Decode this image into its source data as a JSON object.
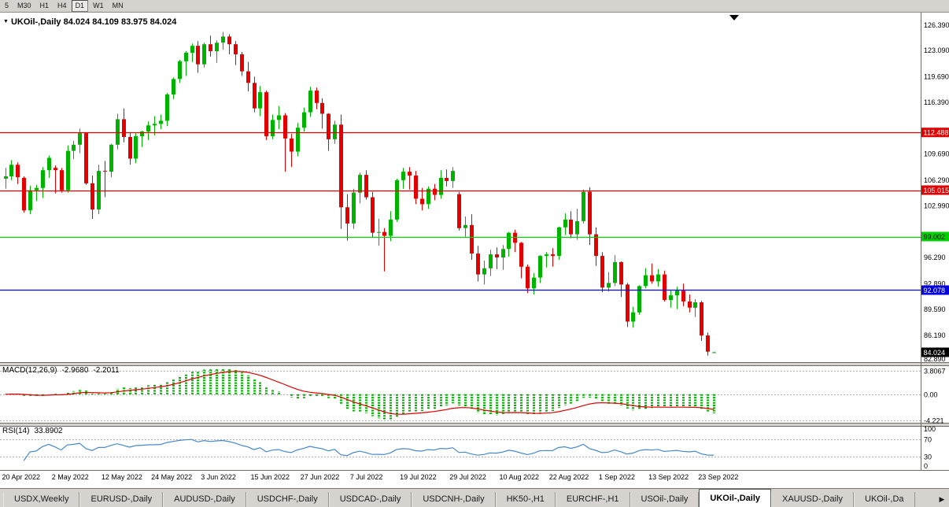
{
  "toolbar": {
    "timeframes": [
      "5",
      "M30",
      "H1",
      "H4",
      "D1",
      "W1",
      "MN"
    ],
    "active": "D1"
  },
  "chart": {
    "title": {
      "expander_icon": "▼",
      "symbol": "UKOil-,Daily",
      "ohlc": "84.024 84.109 83.975 84.024"
    },
    "price_axis": {
      "min": 82.75,
      "max": 128.0,
      "ticks": [
        {
          "label": "126.390",
          "value": 126.39
        },
        {
          "label": "123.090",
          "value": 123.09
        },
        {
          "label": "119.690",
          "value": 119.69
        },
        {
          "label": "116.390",
          "value": 116.39
        },
        {
          "label": "109.690",
          "value": 109.69
        },
        {
          "label": "106.290",
          "value": 106.29
        },
        {
          "label": "102.990",
          "value": 102.99
        },
        {
          "label": "96.290",
          "value": 96.29
        },
        {
          "label": "92.890",
          "value": 92.89
        },
        {
          "label": "89.590",
          "value": 89.59
        },
        {
          "label": "86.190",
          "value": 86.19
        },
        {
          "label": "82.890",
          "value": 82.89
        }
      ]
    },
    "hlines": [
      {
        "label": "112.488",
        "value": 112.488,
        "color": "#e00000",
        "text_color": "#ffffff"
      },
      {
        "label": "105.015",
        "value": 105.015,
        "color": "#e00000",
        "text_color": "#ffffff"
      },
      {
        "label": "99.002",
        "value": 99.002,
        "color": "#00d200",
        "text_color": "#000000"
      },
      {
        "label": "92.078",
        "value": 92.078,
        "color": "#0000e0",
        "text_color": "#ffffff"
      }
    ],
    "bid_badge": {
      "label": "84.024",
      "value": 84.024,
      "bg": "#000000",
      "text_color": "#ffffff"
    },
    "up_color": "#00b200",
    "down_color": "#e30000",
    "shift_marker_icon": "▼"
  },
  "chart_data": {
    "type": "candlestick",
    "symbol": "UKOil-",
    "period": "Daily",
    "ohlc": [
      [
        106.5,
        107.9,
        105.2,
        106.8
      ],
      [
        106.8,
        108.9,
        106.3,
        108.3
      ],
      [
        108.3,
        108.6,
        105.8,
        106.7
      ],
      [
        106.6,
        106.8,
        102.1,
        102.4
      ],
      [
        102.4,
        105.6,
        101.9,
        105.0
      ],
      [
        105.0,
        105.7,
        103.6,
        105.3
      ],
      [
        105.3,
        108.0,
        104.0,
        107.6
      ],
      [
        107.6,
        109.5,
        106.6,
        109.2
      ],
      [
        107.9,
        108.2,
        104.6,
        107.6
      ],
      [
        107.6,
        107.9,
        104.7,
        105.0
      ],
      [
        105.0,
        110.8,
        104.7,
        110.1
      ],
      [
        110.1,
        111.4,
        109.0,
        110.9
      ],
      [
        110.9,
        113.0,
        109.8,
        112.4
      ],
      [
        112.4,
        112.5,
        105.7,
        105.9
      ],
      [
        105.9,
        106.9,
        101.3,
        102.5
      ],
      [
        102.5,
        108.3,
        101.9,
        107.5
      ],
      [
        107.5,
        108.8,
        104.1,
        107.4
      ],
      [
        107.4,
        111.0,
        106.7,
        110.9
      ],
      [
        110.9,
        114.9,
        110.3,
        114.2
      ],
      [
        114.2,
        115.6,
        111.2,
        111.9
      ],
      [
        111.9,
        112.4,
        108.3,
        109.1
      ],
      [
        109.1,
        112.4,
        108.5,
        112.0
      ],
      [
        112.0,
        112.7,
        110.6,
        112.6
      ],
      [
        112.6,
        113.9,
        111.5,
        113.4
      ],
      [
        113.4,
        114.6,
        112.1,
        113.6
      ],
      [
        113.6,
        114.8,
        112.9,
        114.0
      ],
      [
        114.0,
        117.6,
        113.3,
        117.4
      ],
      [
        117.4,
        119.6,
        116.8,
        119.4
      ],
      [
        119.4,
        121.9,
        118.9,
        121.7
      ],
      [
        121.7,
        123.0,
        119.8,
        122.8
      ],
      [
        122.8,
        124.0,
        121.6,
        123.7
      ],
      [
        123.7,
        124.3,
        120.2,
        121.3
      ],
      [
        121.3,
        124.1,
        120.9,
        123.9
      ],
      [
        123.9,
        125.0,
        122.3,
        123.0
      ],
      [
        123.0,
        124.4,
        121.5,
        124.1
      ],
      [
        124.1,
        125.5,
        123.2,
        124.9
      ],
      [
        124.9,
        125.2,
        122.6,
        123.9
      ],
      [
        123.9,
        124.3,
        121.2,
        122.6
      ],
      [
        122.6,
        122.9,
        119.8,
        120.4
      ],
      [
        120.4,
        121.6,
        117.8,
        118.9
      ],
      [
        118.9,
        119.7,
        115.1,
        115.6
      ],
      [
        115.6,
        118.5,
        114.6,
        117.7
      ],
      [
        117.7,
        117.9,
        111.5,
        112.0
      ],
      [
        112.0,
        114.8,
        111.6,
        114.1
      ],
      [
        114.1,
        115.9,
        112.9,
        114.7
      ],
      [
        114.7,
        115.0,
        107.4,
        111.7
      ],
      [
        111.7,
        112.3,
        108.0,
        110.0
      ],
      [
        110.0,
        113.7,
        109.4,
        113.1
      ],
      [
        113.1,
        115.7,
        112.6,
        115.1
      ],
      [
        115.1,
        118.4,
        114.5,
        117.9
      ],
      [
        117.9,
        118.3,
        115.5,
        116.3
      ],
      [
        116.3,
        116.9,
        113.0,
        114.9
      ],
      [
        114.9,
        115.0,
        110.1,
        111.6
      ],
      [
        111.6,
        114.0,
        111.0,
        113.5
      ],
      [
        113.5,
        114.8,
        100.0,
        102.8
      ],
      [
        102.8,
        104.5,
        98.5,
        100.7
      ],
      [
        100.7,
        105.2,
        100.0,
        104.7
      ],
      [
        104.7,
        107.3,
        103.3,
        107.0
      ],
      [
        107.0,
        107.6,
        103.8,
        104.1
      ],
      [
        104.1,
        104.8,
        98.9,
        99.5
      ],
      [
        99.5,
        101.3,
        97.8,
        99.6
      ],
      [
        99.6,
        100.1,
        94.5,
        99.1
      ],
      [
        99.1,
        102.3,
        98.4,
        101.2
      ],
      [
        101.2,
        106.5,
        100.9,
        106.3
      ],
      [
        106.3,
        107.9,
        105.2,
        107.4
      ],
      [
        107.4,
        108.0,
        105.1,
        106.9
      ],
      [
        106.9,
        107.5,
        103.2,
        103.9
      ],
      [
        103.9,
        105.3,
        102.4,
        103.2
      ],
      [
        103.2,
        105.5,
        102.6,
        105.2
      ],
      [
        105.2,
        105.8,
        103.7,
        104.4
      ],
      [
        104.4,
        107.6,
        103.9,
        106.6
      ],
      [
        106.6,
        107.7,
        105.5,
        106.2
      ],
      [
        106.2,
        108.0,
        105.3,
        107.5
      ],
      [
        104.5,
        104.8,
        99.8,
        100.1
      ],
      [
        100.1,
        101.6,
        99.0,
        100.5
      ],
      [
        100.5,
        101.9,
        96.0,
        96.8
      ],
      [
        96.8,
        97.8,
        93.2,
        94.1
      ],
      [
        94.1,
        95.9,
        92.8,
        94.9
      ],
      [
        94.9,
        97.3,
        93.9,
        96.7
      ],
      [
        96.7,
        97.6,
        94.8,
        96.3
      ],
      [
        96.3,
        97.9,
        94.7,
        97.4
      ],
      [
        97.4,
        99.6,
        96.4,
        99.5
      ],
      [
        99.5,
        99.9,
        97.0,
        98.2
      ],
      [
        98.2,
        98.3,
        93.6,
        95.1
      ],
      [
        95.1,
        95.4,
        91.7,
        92.3
      ],
      [
        92.3,
        94.3,
        91.5,
        93.7
      ],
      [
        93.7,
        96.6,
        93.0,
        96.5
      ],
      [
        96.5,
        97.0,
        95.0,
        96.7
      ],
      [
        96.7,
        97.5,
        95.1,
        96.5
      ],
      [
        96.5,
        100.3,
        96.0,
        100.2
      ],
      [
        100.2,
        102.0,
        99.2,
        101.2
      ],
      [
        101.2,
        102.3,
        98.8,
        99.3
      ],
      [
        99.3,
        102.6,
        98.6,
        101.0
      ],
      [
        101.0,
        105.1,
        100.7,
        104.8
      ],
      [
        104.8,
        105.4,
        97.9,
        99.3
      ],
      [
        99.3,
        100.2,
        95.2,
        96.5
      ],
      [
        96.5,
        97.0,
        91.8,
        92.4
      ],
      [
        92.4,
        94.4,
        91.9,
        93.0
      ],
      [
        93.0,
        96.6,
        92.6,
        95.7
      ],
      [
        95.7,
        95.8,
        91.2,
        92.8
      ],
      [
        92.8,
        93.0,
        87.3,
        88.0
      ],
      [
        88.0,
        89.9,
        87.2,
        89.2
      ],
      [
        89.2,
        92.7,
        88.9,
        92.6
      ],
      [
        92.6,
        94.9,
        92.3,
        94.0
      ],
      [
        94.0,
        95.5,
        92.9,
        93.2
      ],
      [
        93.2,
        94.8,
        92.5,
        94.1
      ],
      [
        94.1,
        94.6,
        90.6,
        90.8
      ],
      [
        90.8,
        92.0,
        89.8,
        91.4
      ],
      [
        91.4,
        92.5,
        89.6,
        92.0
      ],
      [
        92.0,
        92.9,
        90.0,
        90.6
      ],
      [
        90.6,
        91.5,
        89.2,
        89.8
      ],
      [
        89.8,
        90.9,
        88.6,
        90.5
      ],
      [
        90.5,
        90.7,
        85.5,
        86.2
      ],
      [
        86.2,
        86.6,
        83.6,
        84.1
      ],
      [
        84.024,
        84.109,
        83.975,
        84.024
      ]
    ],
    "time_labels": [
      {
        "label": "20 Apr 2022",
        "index": 0
      },
      {
        "label": "2 May 2022",
        "index": 8
      },
      {
        "label": "12 May 2022",
        "index": 16
      },
      {
        "label": "24 May 2022",
        "index": 24
      },
      {
        "label": "3 Jun 2022",
        "index": 32
      },
      {
        "label": "15 Jun 2022",
        "index": 40
      },
      {
        "label": "27 Jun 2022",
        "index": 48
      },
      {
        "label": "7 Jul 2022",
        "index": 56
      },
      {
        "label": "19 Jul 2022",
        "index": 64
      },
      {
        "label": "29 Jul 2022",
        "index": 72
      },
      {
        "label": "10 Aug 2022",
        "index": 80
      },
      {
        "label": "22 Aug 2022",
        "index": 88
      },
      {
        "label": "1 Sep 2022",
        "index": 96
      },
      {
        "label": "13 Sep 2022",
        "index": 104
      },
      {
        "label": "23 Sep 2022",
        "index": 112
      }
    ]
  },
  "macd": {
    "name": "MACD(12,26,9)",
    "value_main": "-2.9680",
    "value_signal": "-2.2011",
    "fast": 12,
    "slow": 26,
    "signal_period": 9,
    "axis": [
      {
        "label": "3.8067",
        "value": 3.8067
      },
      {
        "label": "0.00",
        "value": 0
      },
      {
        "label": "-4.221",
        "value": -4.221
      }
    ],
    "histogram_color": "#00b200",
    "signal_color": "#e00000"
  },
  "rsi": {
    "name": "RSI(14)",
    "value": "33.8902",
    "period": 14,
    "line_color": "#4488cc",
    "levels": [
      {
        "label": "100",
        "value": 100,
        "dashed": false
      },
      {
        "label": "70",
        "value": 70,
        "dashed": true
      },
      {
        "label": "30",
        "value": 30,
        "dashed": true
      },
      {
        "label": "0",
        "value": 0,
        "dashed": false
      }
    ]
  },
  "tabs": {
    "scroll_right_icon": "▶",
    "items": [
      {
        "label": "USDX,Weekly",
        "active": false
      },
      {
        "label": "EURUSD-,Daily",
        "active": false
      },
      {
        "label": "AUDUSD-,Daily",
        "active": false
      },
      {
        "label": "USDCHF-,Daily",
        "active": false
      },
      {
        "label": "USDCAD-,Daily",
        "active": false
      },
      {
        "label": "USDCNH-,Daily",
        "active": false
      },
      {
        "label": "HK50-,H1",
        "active": false
      },
      {
        "label": "EURCHF-,H1",
        "active": false
      },
      {
        "label": "USOil-,Daily",
        "active": false
      },
      {
        "label": "UKOil-,Daily",
        "active": true
      },
      {
        "label": "XAUUSD-,Daily",
        "active": false
      },
      {
        "label": "UKOil-,Da",
        "active": false
      }
    ]
  }
}
